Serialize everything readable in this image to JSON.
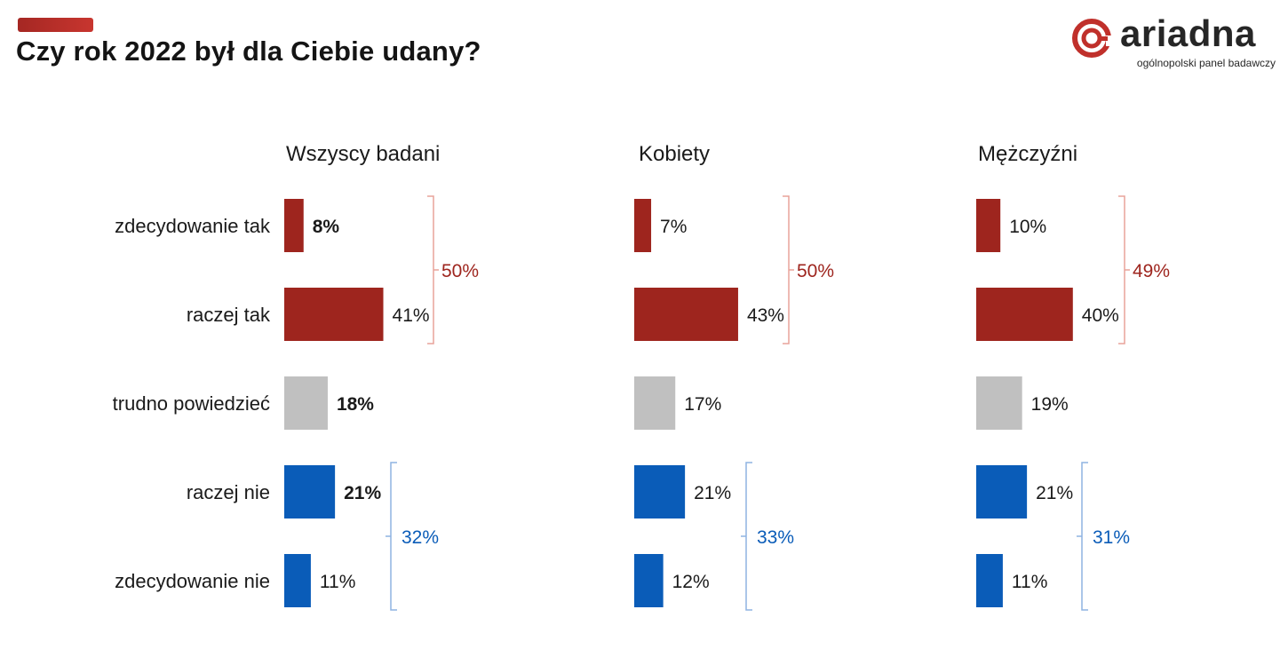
{
  "header": {
    "title": "Czy rok 2022 był dla Ciebie udany?"
  },
  "logo": {
    "name": "ariadna",
    "tagline": "ogólnopolski panel badawczy"
  },
  "colors": {
    "positive": "#9e251e",
    "neutral": "#c0c0c0",
    "negative": "#0a5cb8",
    "accent": "#c0302b",
    "positive_bracket": "#e8a39a",
    "negative_bracket": "#8fb4e2"
  },
  "chart_data": {
    "type": "bar",
    "orientation": "horizontal",
    "categories": [
      "zdecydowanie tak",
      "raczej tak",
      "trudno powiedzieć",
      "raczej nie",
      "zdecydowanie nie"
    ],
    "series": [
      {
        "name": "Wszyscy badani",
        "values": [
          8,
          41,
          18,
          21,
          11
        ],
        "labels": [
          "8%",
          "41%",
          "18%",
          "21%",
          "11%"
        ],
        "bold_labels": [
          true,
          false,
          true,
          true,
          false
        ],
        "groups": [
          {
            "label": "50%",
            "from": 0,
            "to": 1,
            "sentiment": "positive"
          },
          {
            "label": "32%",
            "from": 3,
            "to": 4,
            "sentiment": "negative"
          }
        ]
      },
      {
        "name": "Kobiety",
        "values": [
          7,
          43,
          17,
          21,
          12
        ],
        "labels": [
          "7%",
          "43%",
          "17%",
          "21%",
          "12%"
        ],
        "bold_labels": [
          false,
          false,
          false,
          false,
          false
        ],
        "groups": [
          {
            "label": "50%",
            "from": 0,
            "to": 1,
            "sentiment": "positive"
          },
          {
            "label": "33%",
            "from": 3,
            "to": 4,
            "sentiment": "negative"
          }
        ]
      },
      {
        "name": "Mężczyźni",
        "values": [
          10,
          40,
          19,
          21,
          11
        ],
        "labels": [
          "10%",
          "40%",
          "19%",
          "21%",
          "11%"
        ],
        "bold_labels": [
          false,
          false,
          false,
          false,
          false
        ],
        "groups": [
          {
            "label": "49%",
            "from": 0,
            "to": 1,
            "sentiment": "positive"
          },
          {
            "label": "31%",
            "from": 3,
            "to": 4,
            "sentiment": "negative"
          }
        ]
      }
    ],
    "category_sentiment": [
      "positive",
      "positive",
      "neutral",
      "negative",
      "negative"
    ],
    "grid": false,
    "legend": "none",
    "value_unit": "%"
  }
}
